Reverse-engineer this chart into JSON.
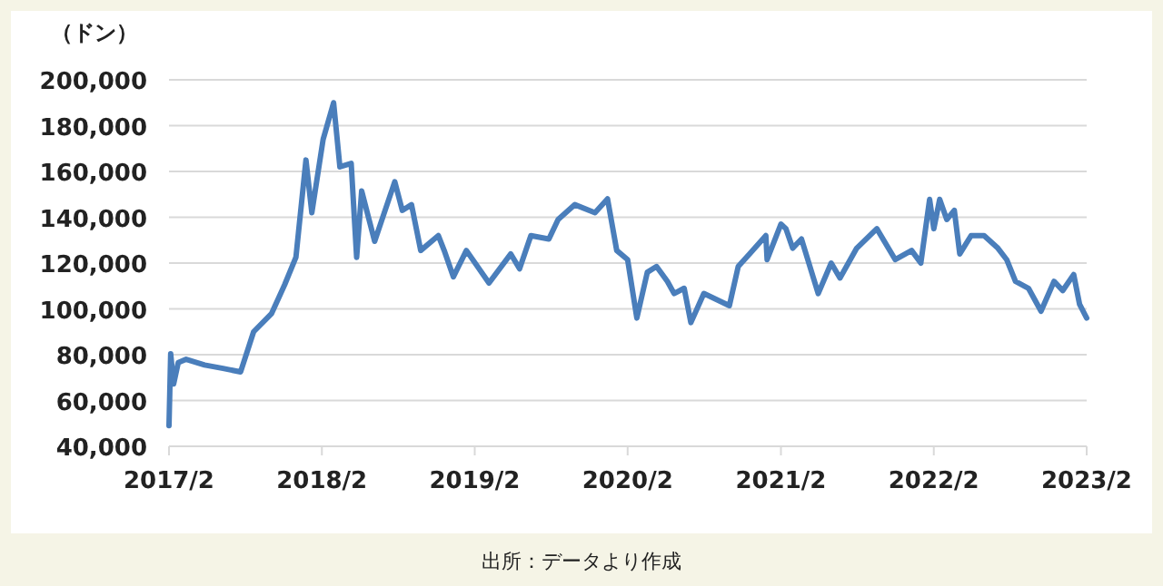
{
  "chart_data": {
    "type": "line",
    "ylabel": "（ドン）",
    "annotations": [
      "出所：データより作成"
    ],
    "x": [
      "2017-02-01",
      "2017-02-05",
      "2017-02-12",
      "2017-02-23",
      "2017-03-14",
      "2017-04-27",
      "2017-06-10",
      "2017-07-22",
      "2017-08-22",
      "2017-10-04",
      "2017-11-04",
      "2017-12-01",
      "2017-12-25",
      "2018-01-08",
      "2018-02-04",
      "2018-03-01",
      "2018-03-16",
      "2018-04-12",
      "2018-04-25",
      "2018-05-07",
      "2018-06-07",
      "2018-07-25",
      "2018-08-12",
      "2018-09-03",
      "2018-09-25",
      "2018-11-06",
      "2018-11-20",
      "2018-12-12",
      "2019-01-12",
      "2019-03-07",
      "2019-04-28",
      "2019-05-19",
      "2019-06-15",
      "2019-07-28",
      "2019-08-19",
      "2019-09-28",
      "2019-11-15",
      "2019-12-15",
      "2020-01-06",
      "2020-02-01",
      "2020-02-23",
      "2020-03-19",
      "2020-04-10",
      "2020-05-06",
      "2020-05-22",
      "2020-06-15",
      "2020-07-01",
      "2020-08-01",
      "2020-10-01",
      "2020-10-22",
      "2020-11-18",
      "2020-12-27",
      "2020-12-30",
      "2021-02-01",
      "2021-02-13",
      "2021-03-01",
      "2021-03-22",
      "2021-05-01",
      "2021-06-01",
      "2021-06-22",
      "2021-08-01",
      "2021-09-18",
      "2021-11-01",
      "2021-12-10",
      "2022-01-01",
      "2022-01-22",
      "2022-02-01",
      "2022-02-15",
      "2022-03-04",
      "2022-03-22",
      "2022-04-04",
      "2022-05-01",
      "2022-06-01",
      "2022-07-04",
      "2022-07-25",
      "2022-08-15",
      "2022-09-15",
      "2022-10-15",
      "2022-11-15",
      "2022-12-06",
      "2023-01-01",
      "2023-01-15",
      "2023-02-01"
    ],
    "series": [
      {
        "color": "#4a7ebb",
        "values": [
          49000,
          80400,
          67200,
          76500,
          78000,
          75500,
          74000,
          72500,
          90000,
          98000,
          110500,
          122500,
          165000,
          142000,
          174000,
          190000,
          162000,
          163500,
          122500,
          151500,
          129500,
          155500,
          143000,
          145500,
          125500,
          132000,
          125500,
          114000,
          125500,
          111300,
          124000,
          117500,
          132000,
          130500,
          139000,
          145500,
          142000,
          148000,
          125500,
          121500,
          96000,
          116000,
          118500,
          112000,
          106700,
          109000,
          94000,
          106700,
          101400,
          118500,
          124000,
          132000,
          121500,
          137000,
          135000,
          126500,
          130500,
          106700,
          120000,
          113500,
          126500,
          135000,
          121500,
          125500,
          120000,
          147800,
          135000,
          147800,
          139000,
          143000,
          124000,
          132000,
          132000,
          126500,
          121500,
          112000,
          109000,
          99000,
          112000,
          108000,
          115000,
          102000,
          96000
        ]
      }
    ],
    "xlim": [
      "2017-02-01",
      "2023-02-01"
    ],
    "xticks": [
      {
        "value": "2017-02-01",
        "label": "2017/2"
      },
      {
        "value": "2018-02-01",
        "label": "2018/2"
      },
      {
        "value": "2019-02-01",
        "label": "2019/2"
      },
      {
        "value": "2020-02-01",
        "label": "2020/2"
      },
      {
        "value": "2021-02-01",
        "label": "2021/2"
      },
      {
        "value": "2022-02-01",
        "label": "2022/2"
      },
      {
        "value": "2023-02-01",
        "label": "2023/2"
      }
    ],
    "ylim": [
      40000,
      200000
    ],
    "yticks": [
      {
        "value": 40000,
        "label": "40,000"
      },
      {
        "value": 60000,
        "label": "60,000"
      },
      {
        "value": 80000,
        "label": "80,000"
      },
      {
        "value": 100000,
        "label": "100,000"
      },
      {
        "value": 120000,
        "label": "120,000"
      },
      {
        "value": 140000,
        "label": "140,000"
      },
      {
        "value": 160000,
        "label": "160,000"
      },
      {
        "value": 180000,
        "label": "180,000"
      },
      {
        "value": 200000,
        "label": "200,000"
      }
    ],
    "grid": "y",
    "line_style": "solid",
    "marker": "none"
  }
}
